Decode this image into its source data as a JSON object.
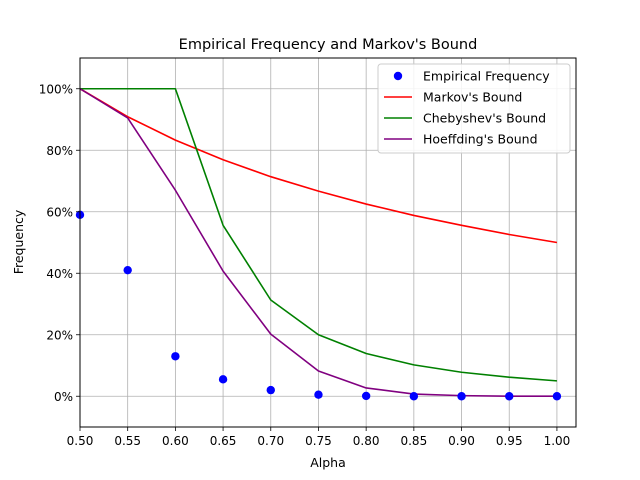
{
  "chart_data": {
    "type": "line",
    "title": "Empirical Frequency and Markov's Bound",
    "xlabel": "Alpha",
    "ylabel": "Frequency",
    "xlim": [
      0.5,
      1.02
    ],
    "ylim": [
      -0.1,
      1.1
    ],
    "grid": true,
    "legend_position": "top-right",
    "x_ticks": [
      0.5,
      0.55,
      0.6,
      0.65,
      0.7,
      0.75,
      0.8,
      0.85,
      0.9,
      0.95,
      1.0
    ],
    "x_tick_labels": [
      "0.50",
      "0.55",
      "0.60",
      "0.65",
      "0.70",
      "0.75",
      "0.80",
      "0.85",
      "0.90",
      "0.95",
      "1.00"
    ],
    "y_ticks": [
      0,
      0.2,
      0.4,
      0.6,
      0.8,
      1.0
    ],
    "y_tick_labels": [
      "0%",
      "20%",
      "40%",
      "60%",
      "80%",
      "100%"
    ],
    "x": [
      0.5,
      0.55,
      0.6,
      0.65,
      0.7,
      0.75,
      0.8,
      0.85,
      0.9,
      0.95,
      1.0
    ],
    "series": [
      {
        "name": "Empirical Frequency",
        "kind": "scatter",
        "color": "#0000ff",
        "values": [
          0.59,
          0.41,
          0.13,
          0.055,
          0.02,
          0.005,
          0.001,
          0.0,
          0.0,
          0.0,
          0.0
        ]
      },
      {
        "name": "Markov's Bound",
        "kind": "line",
        "color": "#ff0000",
        "values": [
          1.0,
          0.909,
          0.833,
          0.769,
          0.714,
          0.667,
          0.625,
          0.588,
          0.556,
          0.526,
          0.5
        ]
      },
      {
        "name": "Chebyshev's Bound",
        "kind": "line",
        "color": "#008000",
        "values": [
          1.0,
          1.0,
          1.0,
          0.556,
          0.313,
          0.2,
          0.139,
          0.102,
          0.078,
          0.062,
          0.05
        ]
      },
      {
        "name": "Hoeffding's Bound",
        "kind": "line",
        "color": "#800080",
        "values": [
          1.0,
          0.905,
          0.67,
          0.407,
          0.202,
          0.082,
          0.027,
          0.007,
          0.002,
          0.0003,
          5e-05
        ]
      }
    ]
  }
}
